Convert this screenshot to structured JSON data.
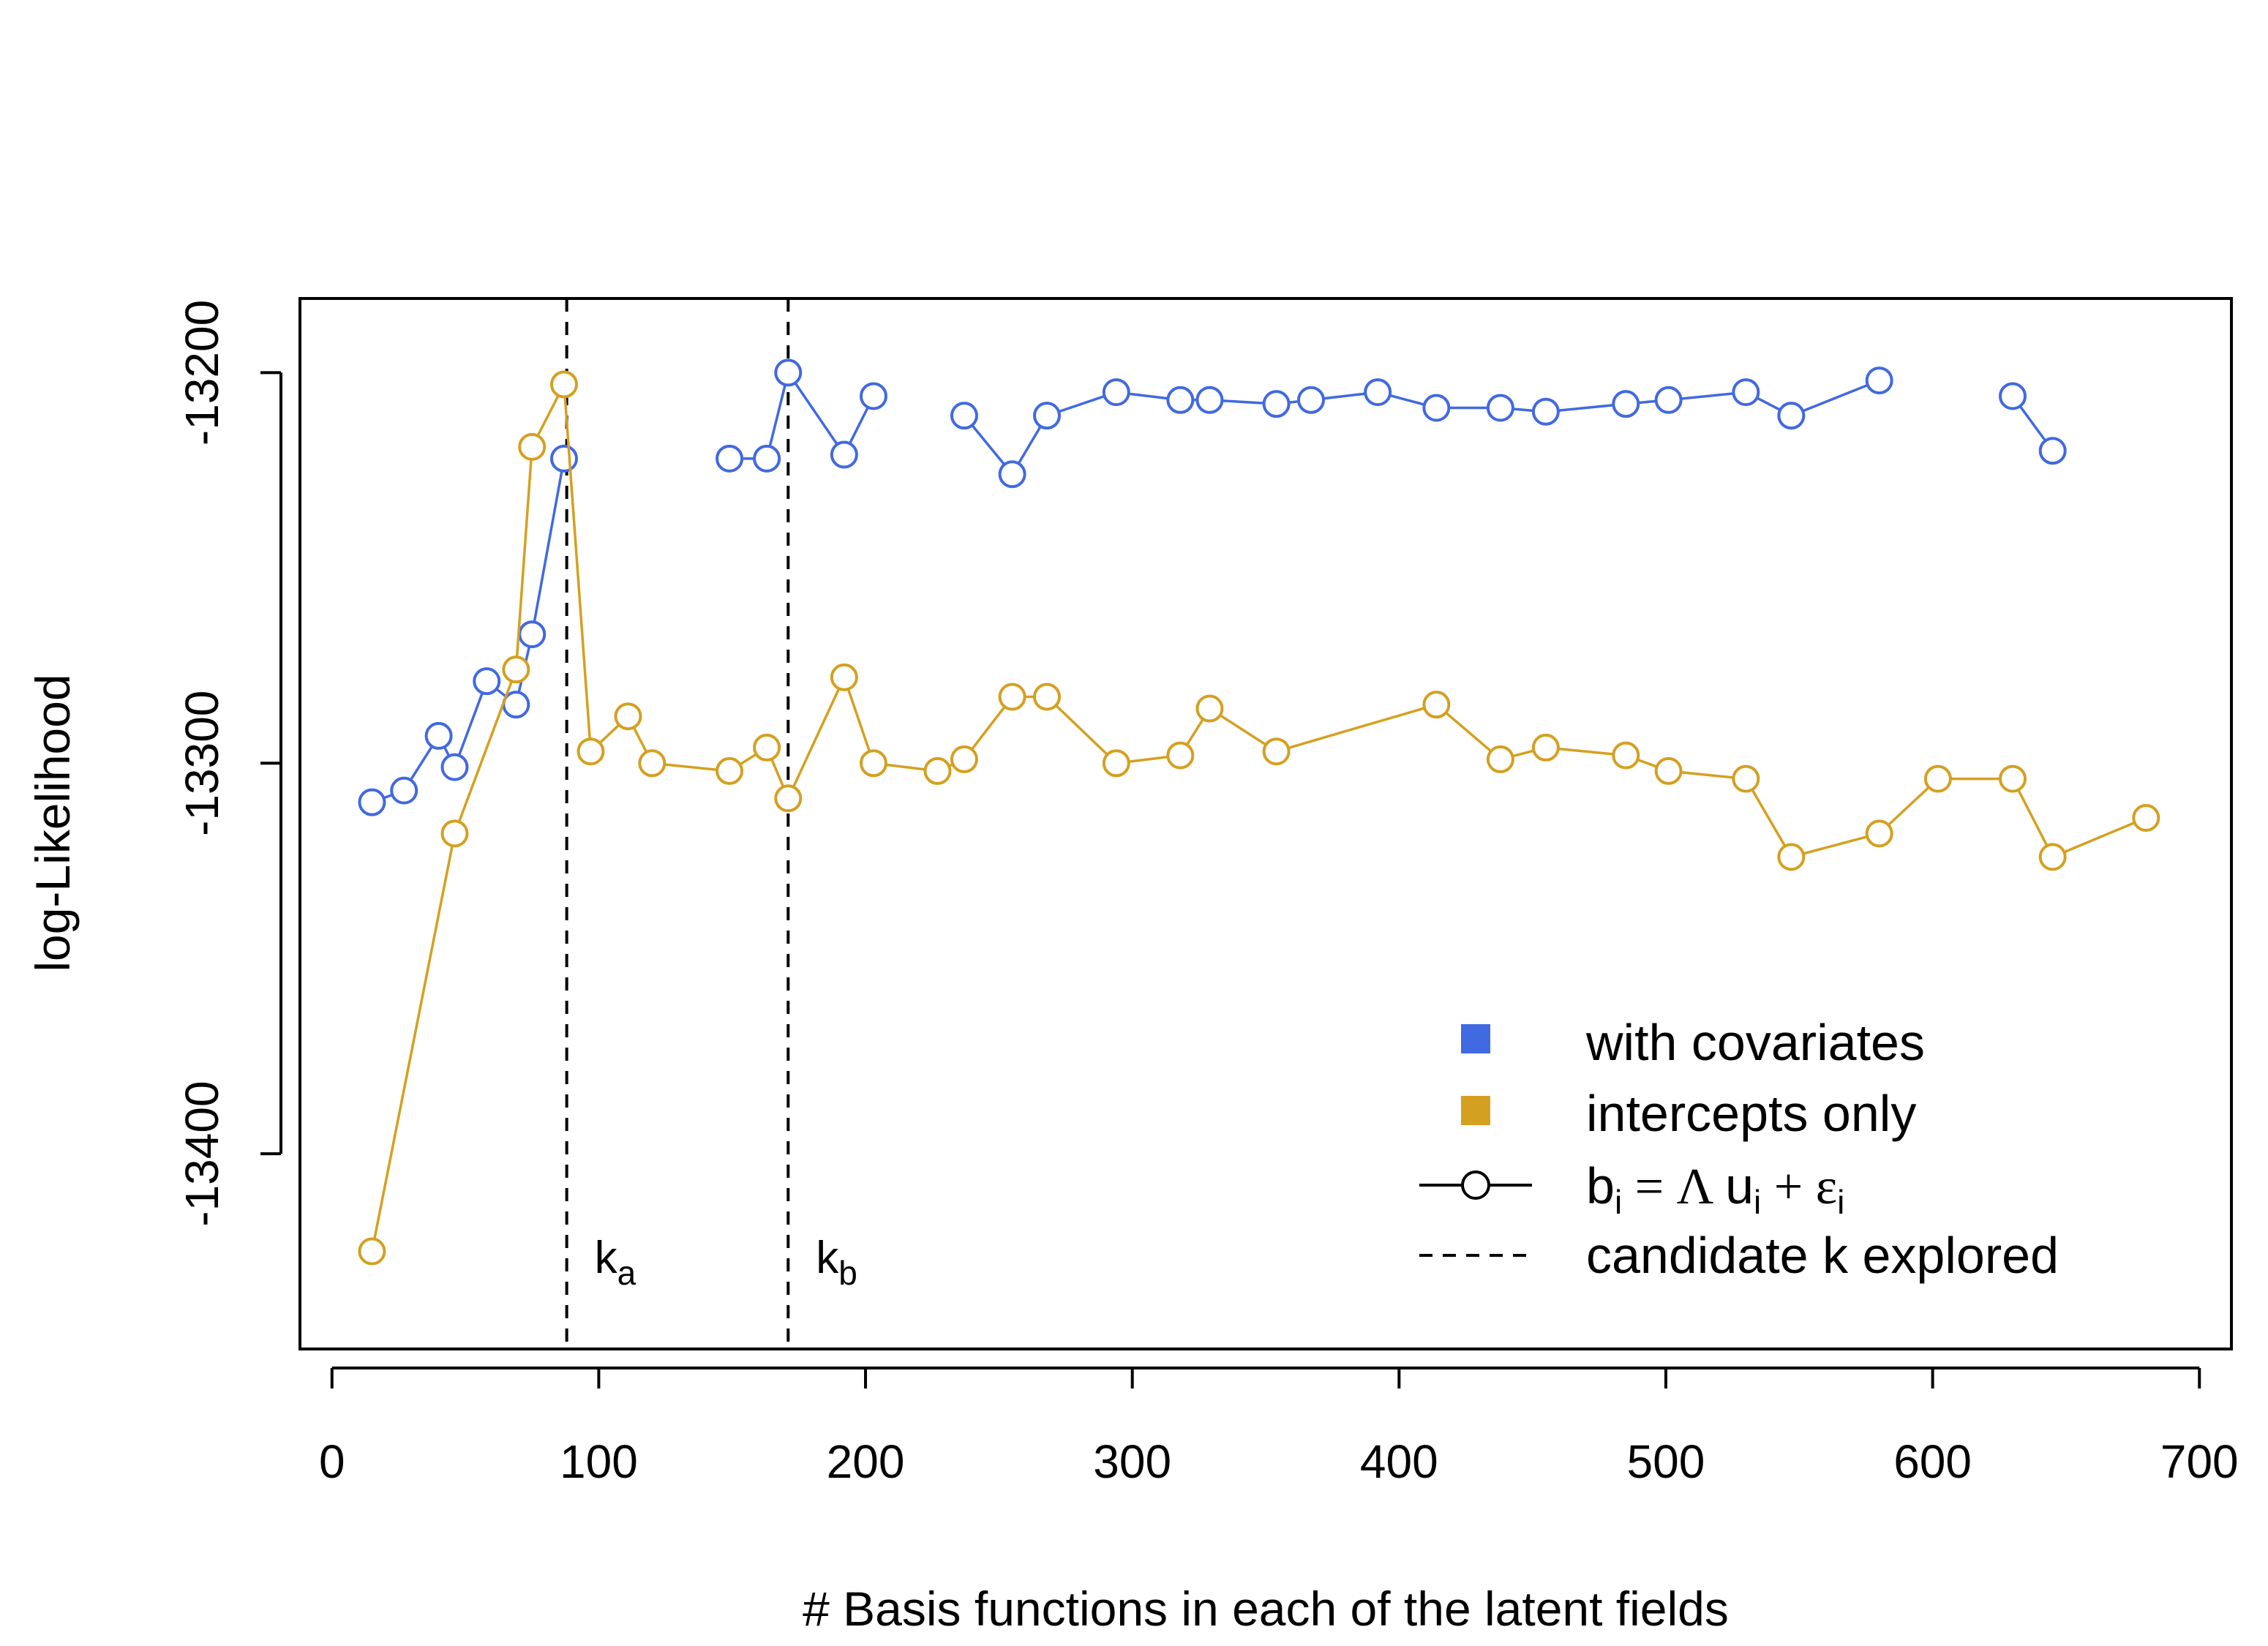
{
  "chart_data": {
    "type": "line",
    "xlabel": "# Basis functions in each of the latent fields",
    "ylabel": "log-Likelihood",
    "xlim": [
      -12,
      712
    ],
    "ylim": [
      -13450,
      -13181
    ],
    "x_ticks": [
      0,
      100,
      200,
      300,
      400,
      500,
      600,
      700
    ],
    "x_tick_labels": [
      "0",
      "100",
      "200",
      "300",
      "400",
      "500",
      "600",
      "700"
    ],
    "y_ticks": [
      -13200,
      -13300,
      -13400
    ],
    "y_tick_labels": [
      "-13200",
      "-13300",
      "-13400"
    ],
    "grid": false,
    "legend_position": "bottom-right",
    "series": [
      {
        "name": "with covariates",
        "color": "#4169E1",
        "segments": [
          [
            [
              15,
              -13310
            ],
            [
              27,
              -13307
            ],
            [
              40,
              -13293
            ],
            [
              46,
              -13301
            ],
            [
              58,
              -13279
            ],
            [
              69,
              -13285
            ],
            [
              75,
              -13267
            ],
            [
              87,
              -13222
            ]
          ],
          [
            [
              149,
              -13222
            ],
            [
              163,
              -13222
            ],
            [
              171,
              -13200
            ],
            [
              192,
              -13221
            ],
            [
              203,
              -13206
            ]
          ],
          [
            [
              237,
              -13211
            ],
            [
              255,
              -13226
            ],
            [
              268,
              -13211
            ],
            [
              294,
              -13205
            ],
            [
              318,
              -13207
            ],
            [
              329,
              -13207
            ],
            [
              354,
              -13208
            ],
            [
              367,
              -13207
            ],
            [
              392,
              -13205
            ],
            [
              414,
              -13209
            ],
            [
              438,
              -13209
            ],
            [
              455,
              -13210
            ],
            [
              485,
              -13208
            ],
            [
              501,
              -13207
            ],
            [
              530,
              -13205
            ],
            [
              547,
              -13211
            ],
            [
              580,
              -13202
            ]
          ],
          [
            [
              630,
              -13206
            ],
            [
              645,
              -13220
            ]
          ]
        ]
      },
      {
        "name": "intercepts only",
        "color": "#D4A020",
        "segments": [
          [
            [
              15,
              -13425
            ],
            [
              46,
              -13318
            ],
            [
              69,
              -13276
            ],
            [
              75,
              -13219
            ],
            [
              87,
              -13203
            ],
            [
              97,
              -13297
            ],
            [
              111,
              -13288
            ],
            [
              120,
              -13300
            ],
            [
              149,
              -13302
            ],
            [
              163,
              -13296
            ],
            [
              171,
              -13309
            ],
            [
              192,
              -13278
            ],
            [
              203,
              -13300
            ],
            [
              227,
              -13302
            ],
            [
              237,
              -13299
            ],
            [
              255,
              -13283
            ],
            [
              268,
              -13283
            ],
            [
              294,
              -13300
            ],
            [
              318,
              -13298
            ],
            [
              329,
              -13286
            ],
            [
              354,
              -13297
            ],
            [
              414,
              -13285
            ],
            [
              438,
              -13299
            ],
            [
              455,
              -13296
            ],
            [
              485,
              -13298
            ],
            [
              501,
              -13302
            ],
            [
              530,
              -13304
            ],
            [
              547,
              -13324
            ],
            [
              580,
              -13318
            ],
            [
              602,
              -13304
            ],
            [
              630,
              -13304
            ],
            [
              645,
              -13324
            ],
            [
              680,
              -13314
            ]
          ]
        ]
      }
    ],
    "candidate_k": [
      {
        "x": 88,
        "label": "k",
        "subscript": "a"
      },
      {
        "x": 171,
        "label": "k",
        "subscript": "b"
      }
    ],
    "legend": {
      "entries": [
        {
          "label": "with covariates",
          "kind": "square",
          "color": "#4169E1"
        },
        {
          "label": "intercepts only",
          "kind": "square",
          "color": "#D4A020"
        },
        {
          "label_parts": {
            "b": "b",
            "i1": "i",
            "eq": " = Λ ",
            "u": "u",
            "i2": "i",
            "plus": " + ",
            "eps": "ε",
            "i3": "i"
          },
          "kind": "line-circle"
        },
        {
          "label": "candidate k explored",
          "kind": "dashed"
        }
      ]
    }
  }
}
